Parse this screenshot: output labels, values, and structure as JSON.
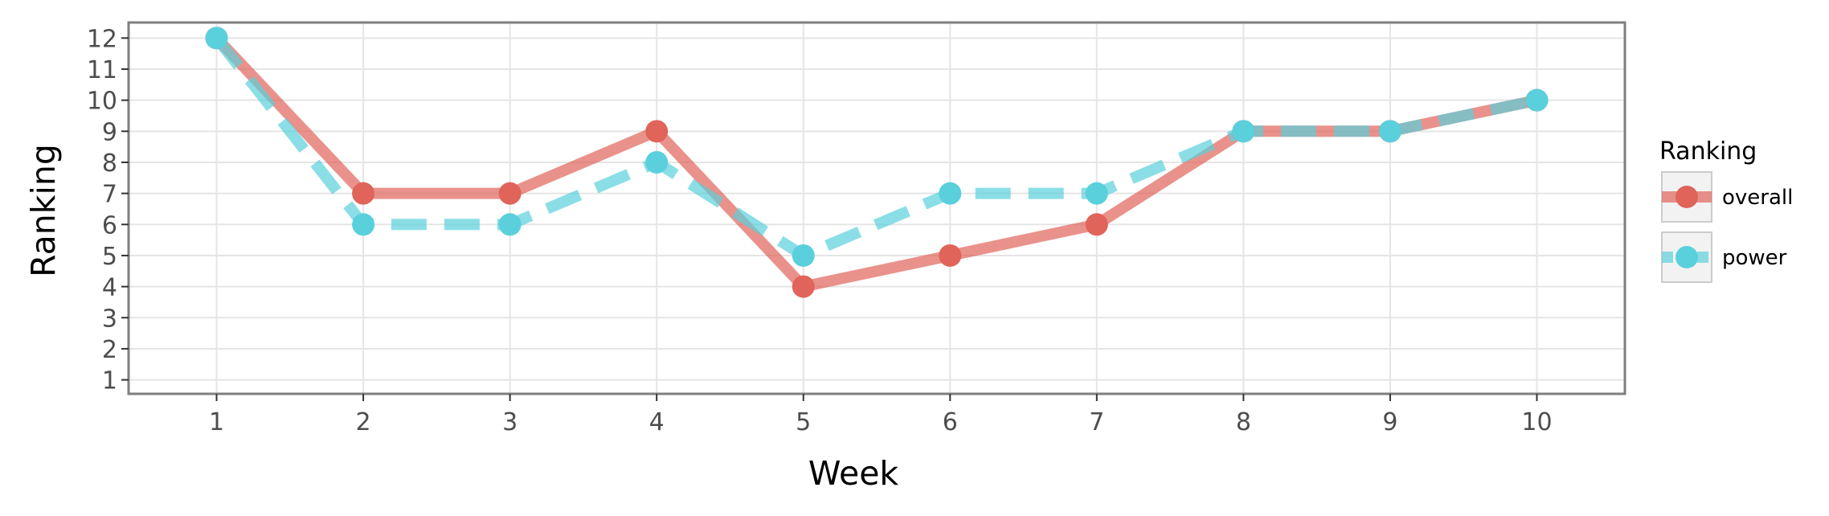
{
  "chart_data": {
    "type": "line",
    "xlabel": "Week",
    "ylabel": "Ranking",
    "x": [
      1,
      2,
      3,
      4,
      5,
      6,
      7,
      8,
      9,
      10
    ],
    "xlim": [
      0.4,
      10.6
    ],
    "ylim": [
      12.5,
      0.55
    ],
    "y_reversed": true,
    "x_ticks": [
      1,
      2,
      3,
      4,
      5,
      6,
      7,
      8,
      9,
      10
    ],
    "y_ticks": [
      1,
      2,
      3,
      4,
      5,
      6,
      7,
      8,
      9,
      10,
      11,
      12
    ],
    "grid": true,
    "legend": {
      "title": "Ranking",
      "position": "right"
    },
    "series": [
      {
        "name": "overall",
        "values": [
          12,
          7,
          7,
          9,
          4,
          5,
          6,
          9,
          9,
          10
        ],
        "color": "#e0645a",
        "line_style": "solid"
      },
      {
        "name": "power",
        "values": [
          12,
          6,
          6,
          8,
          5,
          7,
          7,
          9,
          9,
          10
        ],
        "color": "#5ad0dc",
        "line_style": "dashed"
      }
    ]
  }
}
